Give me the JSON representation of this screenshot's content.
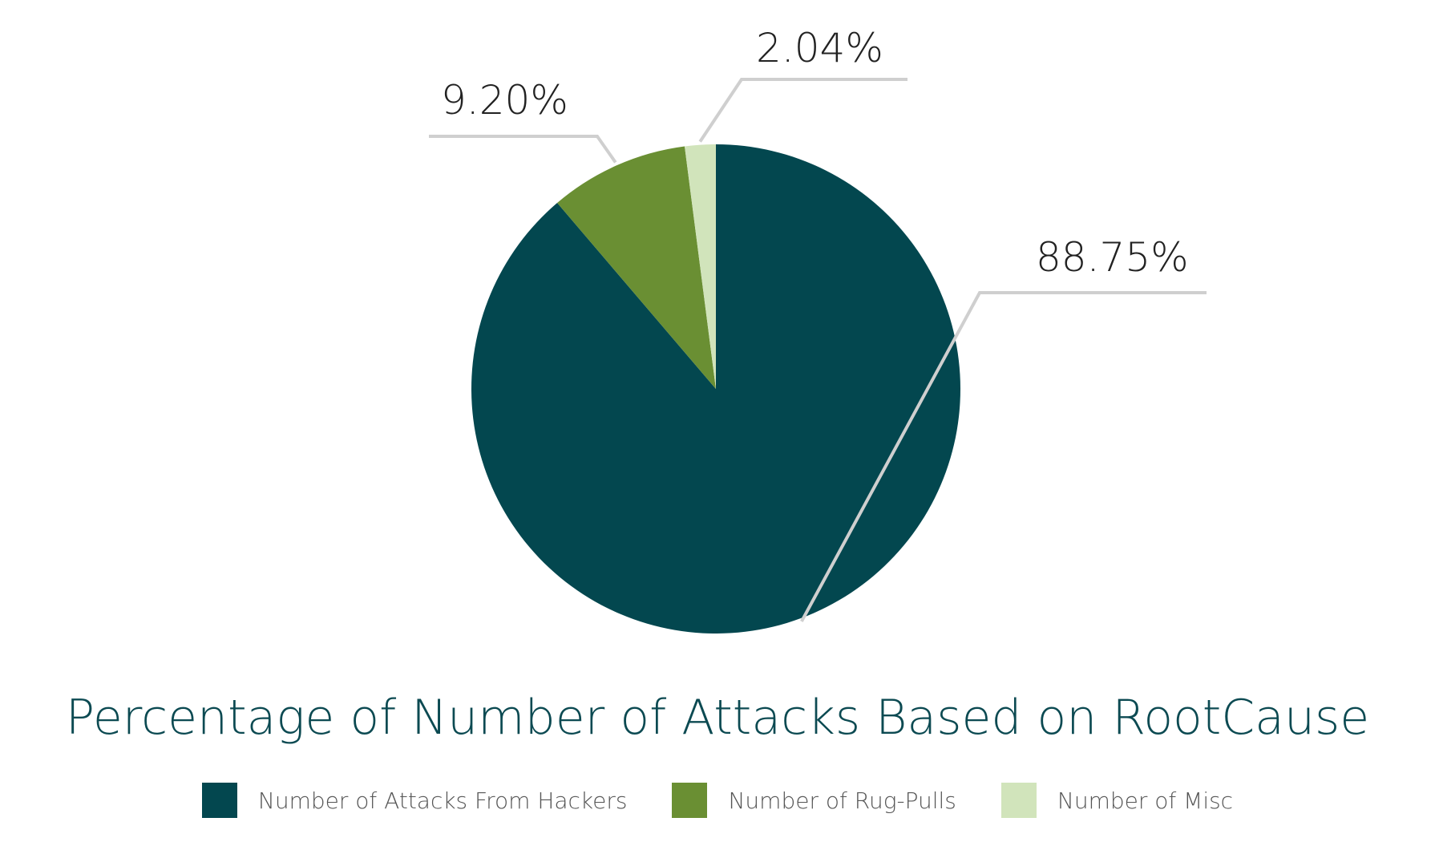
{
  "chart_data": {
    "type": "pie",
    "title": "Percentage of Number of Attacks Based on RootCause",
    "categories": [
      "Number of Attacks From Hackers",
      "Number of Rug-Pulls",
      "Number of Misc"
    ],
    "values": [
      88.75,
      9.2,
      2.04
    ],
    "labels": [
      "88.75%",
      "9.20%",
      "2.04%"
    ],
    "colors": [
      "#03474f",
      "#6a8f33",
      "#d1e4bb"
    ],
    "legend_position": "bottom",
    "start_angle_deg": 0,
    "direction": "clockwise"
  }
}
